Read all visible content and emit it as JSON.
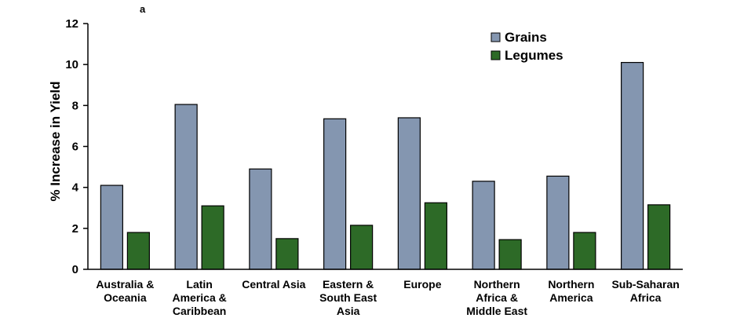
{
  "panel_label": "a",
  "chart_data": {
    "type": "bar",
    "categories": [
      [
        "Australia &",
        "Oceania"
      ],
      [
        "Latin",
        "America &",
        "Caribbean"
      ],
      [
        "Central Asia"
      ],
      [
        "Eastern &",
        "South East",
        "Asia"
      ],
      [
        "Europe"
      ],
      [
        "Northern",
        "Africa &",
        "Middle East"
      ],
      [
        "Northern",
        "America"
      ],
      [
        "Sub-Saharan",
        "Africa"
      ]
    ],
    "series": [
      {
        "name": "Grains",
        "color": "#8496b0",
        "values": [
          4.1,
          8.05,
          4.9,
          7.35,
          7.4,
          4.3,
          4.55,
          10.1
        ]
      },
      {
        "name": "Legumes",
        "color": "#2d6a27",
        "values": [
          1.8,
          3.1,
          1.5,
          2.15,
          3.25,
          1.45,
          1.8,
          3.15
        ]
      }
    ],
    "title": "",
    "xlabel": "",
    "ylabel": "% Increase in Yield",
    "ylim": [
      0,
      12
    ],
    "yticks": [
      "0",
      "2",
      "4",
      "6",
      "8",
      "10",
      "12"
    ],
    "grid": false,
    "legend_position": "top-right"
  }
}
